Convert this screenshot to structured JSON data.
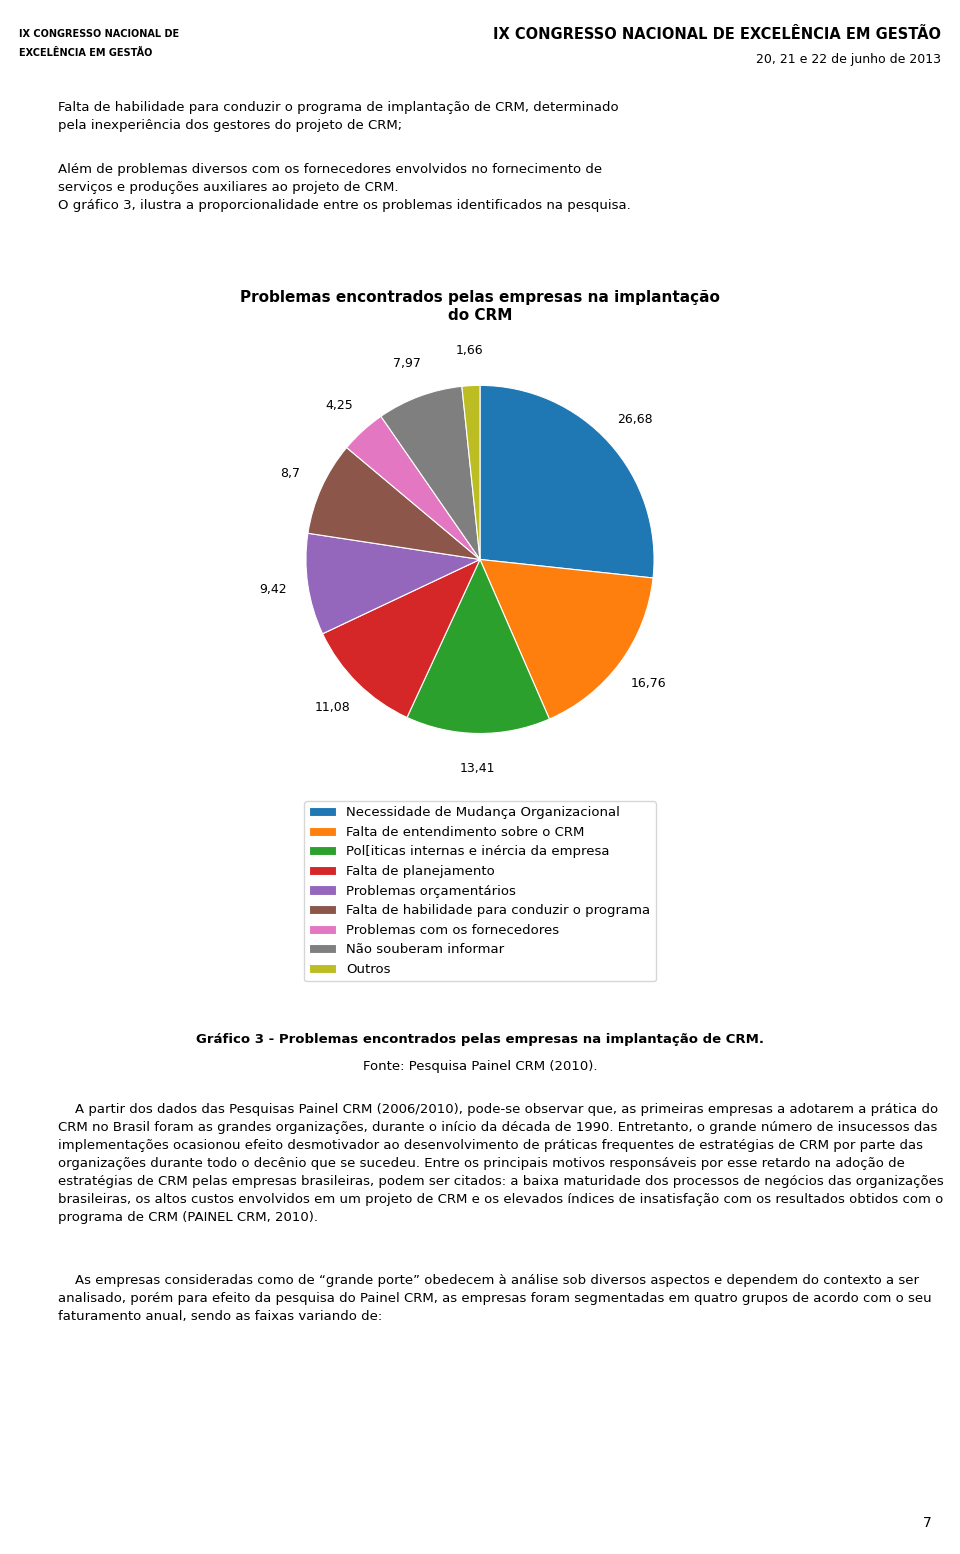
{
  "chart_data": {
    "type": "pie",
    "title": "Problemas encontrados pelas empresas na implantação\ndo CRM",
    "categories": [
      "Necessidade de Mudança Organizacional",
      "Falta de entendimento sobre o CRM",
      "Pol[iticas internas e inércia da empresa",
      "Falta de planejamento",
      "Problemas orçamentários",
      "Falta de habilidade para conduzir o programa",
      "Problemas com os fornecedores",
      "Não souberam informar",
      "Outros"
    ],
    "values": [
      26.68,
      16.76,
      13.41,
      11.08,
      9.42,
      8.7,
      4.25,
      7.97,
      1.66
    ],
    "value_labels": [
      "26,68",
      "16,76",
      "13,41",
      "11,08",
      "9,42",
      "8,7",
      "4,25",
      "7,97",
      "1,66"
    ],
    "data_labels": true,
    "legend": "upper center",
    "annotations": [
      "IX CONGRESSO NACIONAL DE",
      "EXCELÊNCIA EM GESTÃO",
      "IX CONGRESSO NACIONAL DE EXCELÊNCIA EM GESTÃO",
      "20, 21 e 22 de junho de 2013",
      "Falta de habilidade para conduzir o programa de implantação de CRM, determinado\npela inexperiência dos gestores do projeto de CRM;",
      "Além de problemas diversos com os fornecedores envolvidos no fornecimento de\nserviços e produções auxiliares ao projeto de CRM.\nO gráfico 3, ilustra a proporcionalidade entre os problemas identificados na pesquisa.",
      "Gráfico 3 - Problemas encontrados pelas empresas na implantação de CRM.",
      "Fonte: Pesquisa Painel CRM (2010).",
      "    A partir dos dados das Pesquisas Painel CRM (2006/2010), pode-se observar que, as primeiras empresas a adotarem a prática do CRM no Brasil foram as grandes organizações, durante o início da década de 1990. Entretanto, o grande número de insucessos das implementações ocasionou efeito desmotivador ao desenvolvimento de práticas frequentes de estratégias de CRM por parte das organizações durante todo o decênio que se sucedeu. Entre os principais motivos responsáveis por esse retardo na adoção de estratégias de CRM pelas empresas brasileiras, podem ser citados: a baixa maturidade dos processos de negócios das organizações brasileiras, os altos custos envolvidos em um projeto de CRM e os elevados índices de insatisfação com os resultados obtidos com o programa de CRM (PAINEL CRM, 2010).",
      "    As empresas consideradas como de “grande porte” obedecem à análise sob diversos aspectos e dependem do contexto a ser analisado, porém para efeito da pesquisa do Painel CRM, as empresas foram segmentadas em quatro grupos de acordo com o seu faturamento anual, sendo as faixas variando de:",
      "7"
    ]
  }
}
